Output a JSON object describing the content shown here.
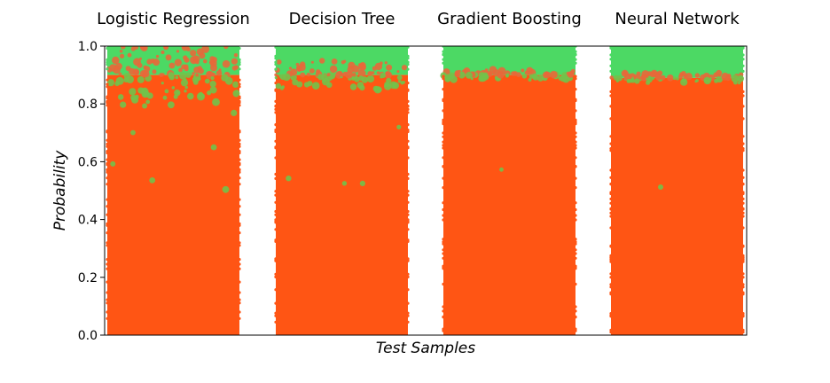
{
  "chart_data": {
    "type": "area",
    "xlabel": "Test Samples",
    "ylabel": "Probability",
    "ylim": [
      0,
      1
    ],
    "yticks": [
      "0.0",
      "0.2",
      "0.4",
      "0.6",
      "0.8",
      "1.0"
    ],
    "grid": false,
    "legend": "none",
    "panels": [
      {
        "title": "Logistic Regression",
        "boundary": 0.9,
        "spread": 0.06
      },
      {
        "title": "Decision Tree",
        "boundary": 0.9,
        "spread": 0.03
      },
      {
        "title": "Gradient Boosting",
        "boundary": 0.9,
        "spread": 0.01
      },
      {
        "title": "Neural Network",
        "boundary": 0.89,
        "spread": 0.01
      }
    ],
    "series": [
      {
        "name": "",
        "color": "#ff5514"
      },
      {
        "name": "",
        "color": "#4cd964"
      }
    ]
  }
}
